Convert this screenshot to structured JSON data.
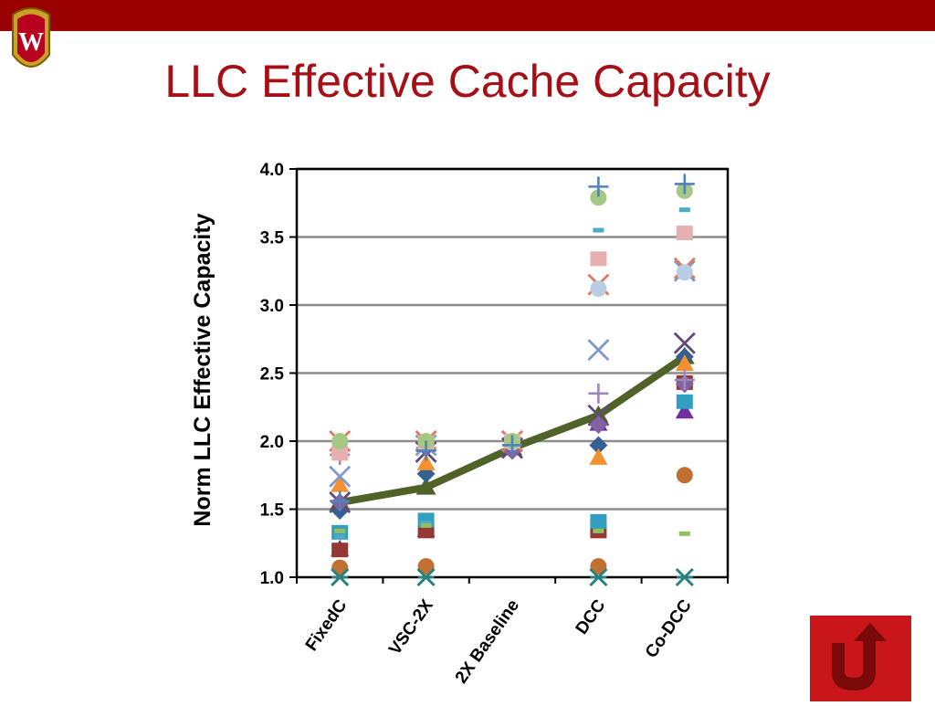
{
  "slide": {
    "title": "LLC Effective Cache Capacity"
  },
  "icons": {
    "logo": "uw-crest-logo",
    "nav": "return-arrow-icon"
  },
  "colors": {
    "banner": "#9b0000",
    "title": "#a50f15",
    "trend_line": "#4f6228",
    "nav_button": "#c8161b"
  },
  "chart_data": {
    "type": "scatter",
    "title": "",
    "ylabel": "Norm LLC Effective Capacity",
    "xlabel": "",
    "categories": [
      "FixedC",
      "VSC-2X",
      "2X Baseline",
      "DCC",
      "Co-DCC"
    ],
    "ylim": [
      1.0,
      4.0
    ],
    "yticks": [
      "1.0",
      "1.5",
      "2.0",
      "2.5",
      "3.0",
      "3.5",
      "4.0"
    ],
    "grid": true,
    "legend": "none",
    "trend_series": {
      "color": "#4f6228",
      "values": [
        1.55,
        1.66,
        1.95,
        2.19,
        2.62
      ]
    },
    "series": [
      {
        "color": "#c07030",
        "marker": "circle",
        "values": [
          1.07,
          1.08,
          null,
          1.08,
          1.75
        ]
      },
      {
        "color": "#2a8080",
        "marker": "cross",
        "values": [
          1.0,
          1.0,
          null,
          1.0,
          1.0
        ]
      },
      {
        "color": "#7030a0",
        "marker": "triangle",
        "values": [
          1.21,
          1.35,
          1.95,
          2.13,
          2.22
        ]
      },
      {
        "color": "#953735",
        "marker": "square",
        "values": [
          1.2,
          1.34,
          1.98,
          1.34,
          2.43
        ]
      },
      {
        "color": "#31a0c0",
        "marker": "square",
        "values": [
          1.33,
          1.42,
          1.98,
          1.41,
          2.29
        ]
      },
      {
        "color": "#376092",
        "marker": "diamond",
        "values": [
          1.49,
          1.76,
          1.93,
          1.97,
          2.62
        ]
      },
      {
        "color": "#f39030",
        "marker": "triangle",
        "values": [
          1.68,
          1.84,
          1.97,
          1.88,
          2.57
        ]
      },
      {
        "color": "#604a7b",
        "marker": "x",
        "values": [
          1.55,
          1.92,
          1.95,
          2.19,
          2.72
        ]
      },
      {
        "color": "#8064a2",
        "marker": "diamond",
        "values": [
          1.55,
          1.95,
          1.93,
          2.12,
          2.42
        ]
      },
      {
        "color": "#9b87b8",
        "marker": "plus",
        "values": [
          1.9,
          1.95,
          1.97,
          2.35,
          2.45
        ]
      },
      {
        "color": "#7f99cc",
        "marker": "x",
        "values": [
          1.74,
          1.97,
          2.0,
          2.67,
          3.25
        ]
      },
      {
        "color": "#e07860",
        "marker": "x",
        "values": [
          2.0,
          2.0,
          2.0,
          3.15,
          3.27
        ]
      },
      {
        "color": "#b9cde5",
        "marker": "circle",
        "values": [
          1.97,
          1.99,
          1.99,
          3.12,
          3.24
        ]
      },
      {
        "color": "#e6b0b0",
        "marker": "square",
        "values": [
          1.91,
          1.99,
          2.0,
          3.34,
          3.53
        ]
      },
      {
        "color": "#4bacc6",
        "marker": "dash",
        "values": [
          1.3,
          1.4,
          null,
          3.55,
          3.7
        ]
      },
      {
        "color": "#92c060",
        "marker": "dash",
        "values": [
          1.34,
          1.38,
          null,
          1.34,
          1.32
        ]
      },
      {
        "color": "#a5c882",
        "marker": "circle",
        "values": [
          2.0,
          2.0,
          2.0,
          3.79,
          3.84
        ]
      },
      {
        "color": "#4f81bd",
        "marker": "plus",
        "values": [
          1.56,
          1.93,
          1.97,
          3.87,
          3.89
        ]
      }
    ]
  }
}
